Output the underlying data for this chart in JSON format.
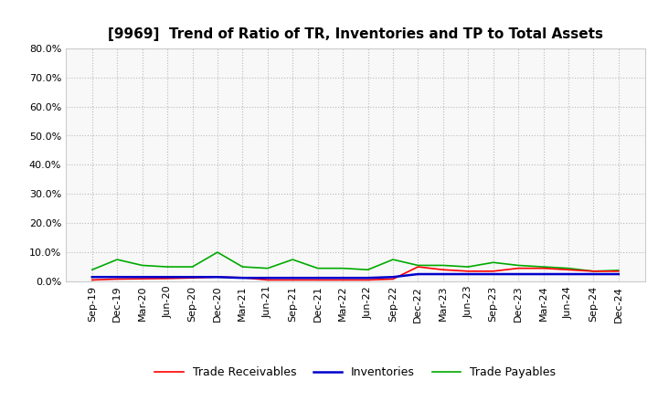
{
  "title": "[9969]  Trend of Ratio of TR, Inventories and TP to Total Assets",
  "x_labels": [
    "Sep-19",
    "Dec-19",
    "Mar-20",
    "Jun-20",
    "Sep-20",
    "Dec-20",
    "Mar-21",
    "Jun-21",
    "Sep-21",
    "Dec-21",
    "Mar-22",
    "Jun-22",
    "Sep-22",
    "Dec-22",
    "Mar-23",
    "Jun-23",
    "Sep-23",
    "Dec-23",
    "Mar-24",
    "Jun-24",
    "Sep-24",
    "Dec-24"
  ],
  "trade_receivables": [
    0.5,
    0.8,
    0.9,
    1.0,
    1.2,
    1.5,
    1.3,
    0.5,
    0.5,
    0.5,
    0.5,
    0.5,
    0.8,
    5.0,
    4.0,
    3.5,
    3.5,
    4.5,
    4.5,
    4.0,
    3.5,
    3.5
  ],
  "inventories": [
    1.5,
    1.5,
    1.5,
    1.5,
    1.5,
    1.5,
    1.2,
    1.2,
    1.2,
    1.2,
    1.2,
    1.2,
    1.5,
    2.5,
    2.5,
    2.5,
    2.5,
    2.5,
    2.5,
    2.5,
    2.5,
    2.5
  ],
  "trade_payables": [
    4.0,
    7.5,
    5.5,
    5.0,
    5.0,
    10.0,
    5.0,
    4.5,
    7.5,
    4.5,
    4.5,
    4.0,
    7.5,
    5.5,
    5.5,
    5.0,
    6.5,
    5.5,
    5.0,
    4.5,
    3.5,
    3.8
  ],
  "ylim": [
    0,
    80
  ],
  "yticks": [
    0,
    10,
    20,
    30,
    40,
    50,
    60,
    70,
    80
  ],
  "line_colors": {
    "trade_receivables": "#FF0000",
    "inventories": "#0000CC",
    "trade_payables": "#00AA00"
  },
  "line_widths": {
    "trade_receivables": 1.2,
    "inventories": 1.8,
    "trade_payables": 1.2
  },
  "legend_labels": [
    "Trade Receivables",
    "Inventories",
    "Trade Payables"
  ],
  "background_color": "#FFFFFF",
  "plot_bg_color": "#F8F8F8",
  "grid_color": "#BBBBBB",
  "title_fontsize": 11,
  "axis_fontsize": 8
}
